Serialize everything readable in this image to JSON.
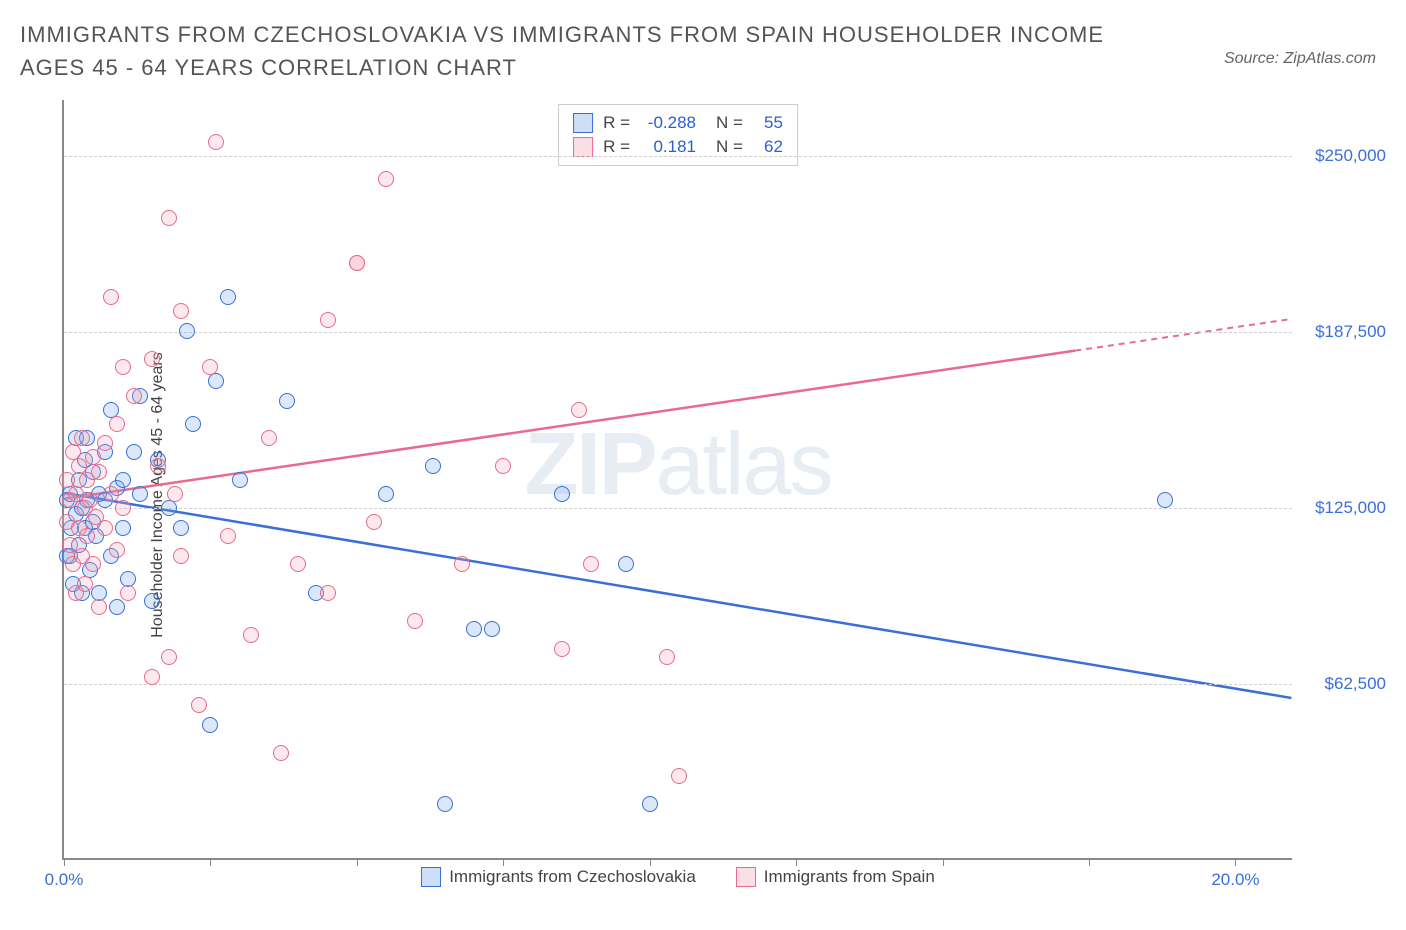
{
  "title": "IMMIGRANTS FROM CZECHOSLOVAKIA VS IMMIGRANTS FROM SPAIN HOUSEHOLDER INCOME AGES 45 - 64 YEARS CORRELATION CHART",
  "source": "Source: ZipAtlas.com",
  "watermark_a": "ZIP",
  "watermark_b": "atlas",
  "chart": {
    "type": "scatter",
    "ylabel": "Householder Income Ages 45 - 64 years",
    "xlim": [
      0,
      21
    ],
    "ylim": [
      0,
      270000
    ],
    "x_ticks": [
      0,
      2.5,
      5,
      7.5,
      10,
      12.5,
      15,
      17.5,
      20
    ],
    "x_tick_labels": {
      "0": "0.0%",
      "20": "20.0%"
    },
    "y_gridlines": [
      62500,
      125000,
      187500,
      250000
    ],
    "y_tick_labels": [
      "$62,500",
      "$125,000",
      "$187,500",
      "$250,000"
    ],
    "grid_color": "#d0d0d0",
    "background_color": "#ffffff",
    "axis_color": "#888888",
    "marker_radius": 8,
    "marker_fill_opacity": 0.25,
    "series": [
      {
        "name": "Immigrants from Czechoslovakia",
        "color": "#6fa3e8",
        "stroke": "#3b6fd6",
        "R": "-0.288",
        "N": "55",
        "trend": {
          "x1": 0,
          "y1": 130000,
          "x2": 21,
          "y2": 57000,
          "dash_from_x": null
        },
        "points": [
          [
            0.05,
            108000
          ],
          [
            0.05,
            128000
          ],
          [
            0.1,
            108000
          ],
          [
            0.1,
            130000
          ],
          [
            0.12,
            118000
          ],
          [
            0.15,
            98000
          ],
          [
            0.2,
            150000
          ],
          [
            0.2,
            123000
          ],
          [
            0.25,
            112000
          ],
          [
            0.25,
            135000
          ],
          [
            0.3,
            125000
          ],
          [
            0.3,
            95000
          ],
          [
            0.35,
            142000
          ],
          [
            0.35,
            118000
          ],
          [
            0.4,
            128000
          ],
          [
            0.4,
            150000
          ],
          [
            0.45,
            103000
          ],
          [
            0.5,
            120000
          ],
          [
            0.5,
            138000
          ],
          [
            0.55,
            115000
          ],
          [
            0.6,
            130000
          ],
          [
            0.6,
            95000
          ],
          [
            0.7,
            128000
          ],
          [
            0.7,
            145000
          ],
          [
            0.8,
            108000
          ],
          [
            0.8,
            160000
          ],
          [
            0.9,
            132000
          ],
          [
            0.9,
            90000
          ],
          [
            1.0,
            135000
          ],
          [
            1.0,
            118000
          ],
          [
            1.1,
            100000
          ],
          [
            1.2,
            145000
          ],
          [
            1.3,
            165000
          ],
          [
            1.3,
            130000
          ],
          [
            1.5,
            92000
          ],
          [
            1.6,
            142000
          ],
          [
            1.8,
            125000
          ],
          [
            2.0,
            118000
          ],
          [
            2.1,
            188000
          ],
          [
            2.2,
            155000
          ],
          [
            2.5,
            48000
          ],
          [
            2.6,
            170000
          ],
          [
            2.8,
            200000
          ],
          [
            3.0,
            135000
          ],
          [
            3.8,
            163000
          ],
          [
            4.3,
            95000
          ],
          [
            5.5,
            130000
          ],
          [
            6.3,
            140000
          ],
          [
            6.5,
            20000
          ],
          [
            7.0,
            82000
          ],
          [
            7.3,
            82000
          ],
          [
            8.5,
            130000
          ],
          [
            9.6,
            105000
          ],
          [
            10.0,
            20000
          ],
          [
            18.8,
            128000
          ]
        ]
      },
      {
        "name": "Immigrants from Spain",
        "color": "#f4a3b8",
        "stroke": "#e86b8e",
        "R": "0.181",
        "N": "62",
        "trend": {
          "x1": 0,
          "y1": 128000,
          "x2": 21,
          "y2": 192000,
          "dash_from_x": 17.3
        },
        "points": [
          [
            0.05,
            120000
          ],
          [
            0.05,
            135000
          ],
          [
            0.1,
            112000
          ],
          [
            0.1,
            128000
          ],
          [
            0.15,
            105000
          ],
          [
            0.15,
            145000
          ],
          [
            0.2,
            95000
          ],
          [
            0.2,
            130000
          ],
          [
            0.25,
            118000
          ],
          [
            0.25,
            140000
          ],
          [
            0.3,
            108000
          ],
          [
            0.3,
            150000
          ],
          [
            0.35,
            125000
          ],
          [
            0.35,
            98000
          ],
          [
            0.4,
            135000
          ],
          [
            0.4,
            115000
          ],
          [
            0.45,
            128000
          ],
          [
            0.5,
            143000
          ],
          [
            0.5,
            105000
          ],
          [
            0.55,
            122000
          ],
          [
            0.6,
            138000
          ],
          [
            0.6,
            90000
          ],
          [
            0.7,
            148000
          ],
          [
            0.7,
            118000
          ],
          [
            0.8,
            200000
          ],
          [
            0.8,
            130000
          ],
          [
            0.9,
            155000
          ],
          [
            0.9,
            110000
          ],
          [
            1.0,
            175000
          ],
          [
            1.0,
            125000
          ],
          [
            1.1,
            95000
          ],
          [
            1.2,
            165000
          ],
          [
            1.5,
            65000
          ],
          [
            1.5,
            178000
          ],
          [
            1.6,
            140000
          ],
          [
            1.8,
            228000
          ],
          [
            1.8,
            72000
          ],
          [
            1.9,
            130000
          ],
          [
            2.0,
            195000
          ],
          [
            2.0,
            108000
          ],
          [
            2.3,
            55000
          ],
          [
            2.5,
            175000
          ],
          [
            2.6,
            255000
          ],
          [
            2.8,
            115000
          ],
          [
            3.2,
            80000
          ],
          [
            3.5,
            150000
          ],
          [
            3.7,
            38000
          ],
          [
            4.0,
            105000
          ],
          [
            4.5,
            192000
          ],
          [
            4.5,
            95000
          ],
          [
            5.0,
            212000
          ],
          [
            5.0,
            212000
          ],
          [
            5.3,
            120000
          ],
          [
            5.5,
            242000
          ],
          [
            6.0,
            85000
          ],
          [
            6.8,
            105000
          ],
          [
            7.5,
            140000
          ],
          [
            8.5,
            75000
          ],
          [
            8.8,
            160000
          ],
          [
            9.0,
            105000
          ],
          [
            10.3,
            72000
          ],
          [
            10.5,
            30000
          ]
        ]
      }
    ],
    "legend_labels": {
      "R_prefix": "R = ",
      "N_prefix": "N = "
    }
  }
}
